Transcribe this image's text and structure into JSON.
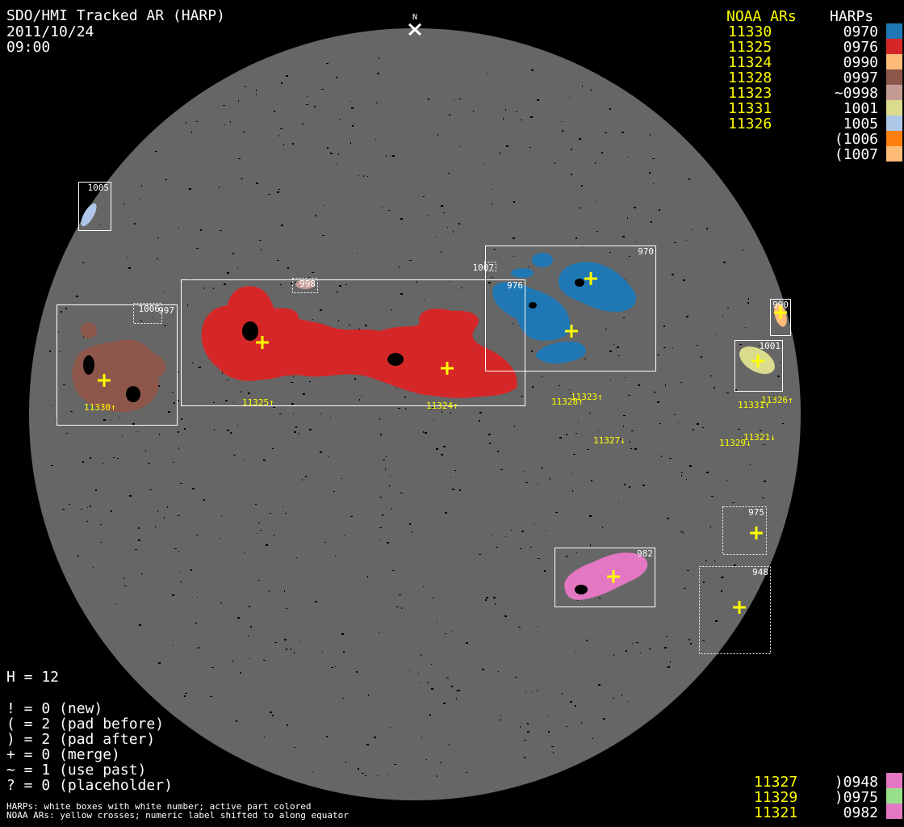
{
  "header": {
    "title": "SDO/HMI Tracked AR (HARP)",
    "date": "2011/10/24",
    "time": "09:00",
    "north_label": "N"
  },
  "legend_top": {
    "noaa_header": "NOAA ARs",
    "harp_header": "HARPs",
    "noaa": [
      "11330",
      "11325",
      "11324",
      "11328",
      "11323",
      "11331",
      "11326"
    ],
    "harps": [
      {
        "label": "0970",
        "color": "#1f77b4"
      },
      {
        "label": "0976",
        "color": "#d62728"
      },
      {
        "label": "0990",
        "color": "#ffbb78"
      },
      {
        "label": "0997",
        "color": "#8c564b"
      },
      {
        "label": "~0998",
        "color": "#c49c94"
      },
      {
        "label": "1001",
        "color": "#dbdb8d"
      },
      {
        "label": "1005",
        "color": "#aec7e8"
      },
      {
        "label": "(1006",
        "color": "#ff7f0e"
      },
      {
        "label": "(1007",
        "color": "#ffbb78"
      }
    ]
  },
  "legend_bottom": {
    "noaa": [
      "11327",
      "11329",
      "11321"
    ],
    "harps": [
      {
        "label": ")0948",
        "color": "#e377c2"
      },
      {
        "label": ")0975",
        "color": "#98df8a"
      },
      {
        "label": "0982",
        "color": "#e377c2"
      }
    ]
  },
  "stats": {
    "h": "H = 12",
    "lines": [
      "! = 0 (new)",
      "( = 2 (pad before)",
      ") = 2 (pad after)",
      "+ = 0 (merge)",
      "~ = 1 (use past)",
      "? = 0 (placeholder)"
    ]
  },
  "footnote": [
    "HARPs: white boxes with white number; active part colored",
    "NOAA ARs: yellow crosses; numeric label shifted to along equator"
  ],
  "harp_boxes": [
    {
      "label": "1005",
      "dotted": false
    },
    {
      "label": "997",
      "dotted": false
    },
    {
      "label": "1006",
      "dotted": true
    },
    {
      "label": "998",
      "dotted": true
    },
    {
      "label": "976",
      "dotted": false
    },
    {
      "label": "1007",
      "dotted": true
    },
    {
      "label": "970",
      "dotted": false
    },
    {
      "label": "990",
      "dotted": false
    },
    {
      "label": "1001",
      "dotted": false
    },
    {
      "label": "975",
      "dotted": true
    },
    {
      "label": "948",
      "dotted": true
    },
    {
      "label": "982",
      "dotted": false
    }
  ],
  "ar_labels": [
    "11330↑",
    "11325↑",
    "11324↑",
    "11328↑",
    "11323↑",
    "11327↓",
    "11331↑",
    "11326↑",
    "11321↓",
    "11329↓"
  ]
}
